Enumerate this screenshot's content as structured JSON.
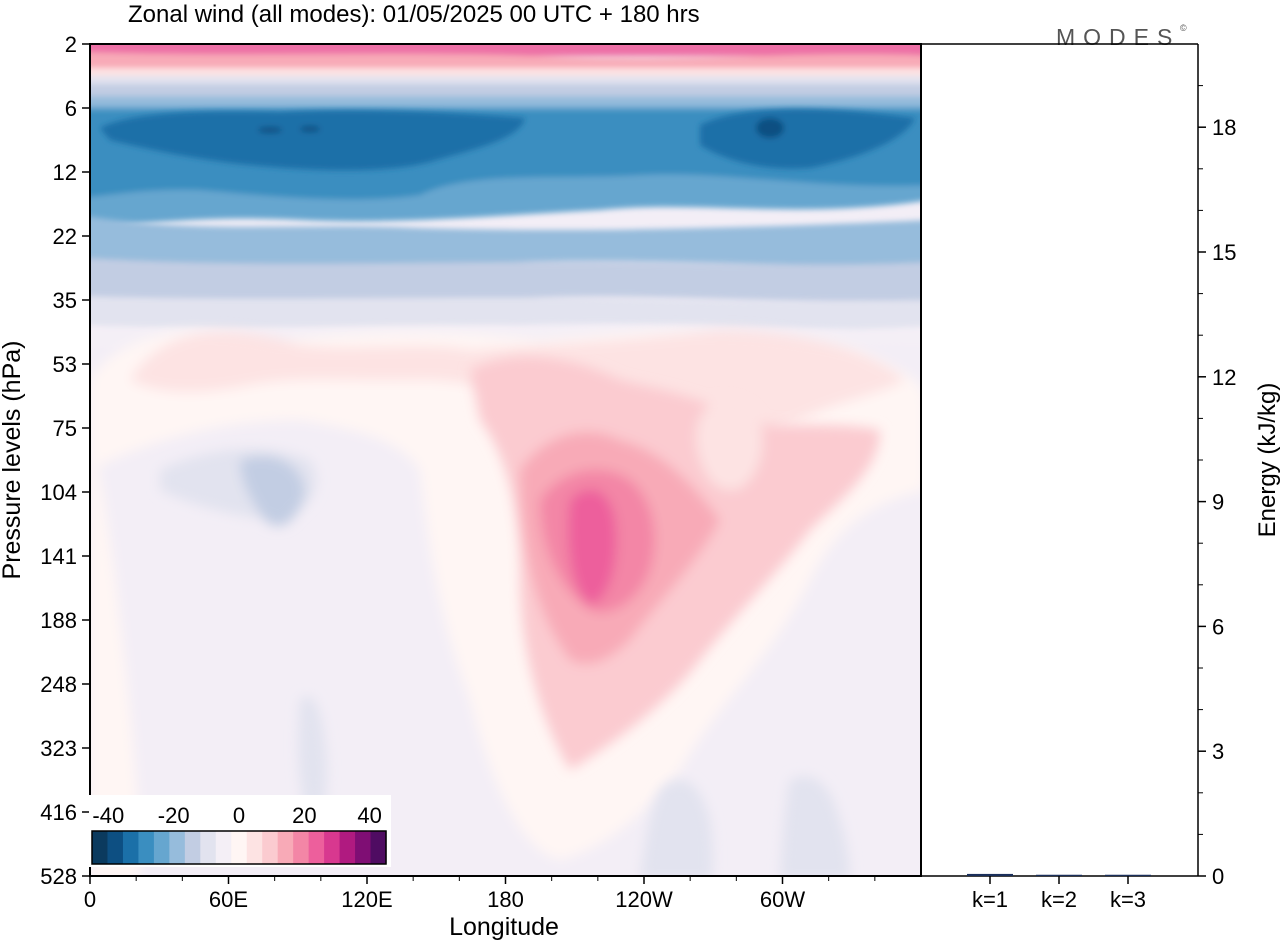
{
  "logo": "MODES",
  "chart_data": [
    {
      "type": "heatmap",
      "title": "Zonal wind (all modes):  01/05/2025  00 UTC  + 180 hrs",
      "xlabel": "Longitude",
      "ylabel": "Pressure levels (hPa)",
      "x_ticks": [
        "0",
        "60E",
        "120E",
        "180",
        "120W",
        "60W"
      ],
      "x_tick_values": [
        0,
        60,
        120,
        180,
        240,
        300
      ],
      "xlim": [
        0,
        360
      ],
      "y_ticks": [
        "2",
        "6",
        "12",
        "22",
        "35",
        "53",
        "75",
        "104",
        "141",
        "188",
        "248",
        "323",
        "416",
        "528"
      ],
      "y_scale": "model levels, pressure decreasing upward",
      "colorbar": {
        "tick_labels": [
          "-40",
          "-20",
          "0",
          "20",
          "40"
        ],
        "tick_values": [
          -40,
          -20,
          0,
          20,
          40
        ],
        "levels": [
          -45,
          -40,
          -35,
          -30,
          -25,
          -20,
          -15,
          -10,
          -5,
          0,
          5,
          10,
          15,
          20,
          25,
          30,
          35,
          40,
          45
        ],
        "colors": [
          "#0b3a5e",
          "#0d4f82",
          "#1b70a8",
          "#3a8ec0",
          "#66a6cf",
          "#96bcdc",
          "#c2cde3",
          "#e2e3ef",
          "#f4eff6",
          "#fff6f4",
          "#fde3e3",
          "#fbcbd0",
          "#f8aab7",
          "#f386a6",
          "#ed5f9c",
          "#d8388f",
          "#b01a80",
          "#7f0e74",
          "#4f0c62"
        ]
      },
      "features": [
        {
          "region": "easterly jet core",
          "lon_range": [
            0,
            360
          ],
          "pressure_range": [
            6,
            12
          ],
          "value": -40
        },
        {
          "region": "upper easterlies",
          "lon_range": [
            0,
            360
          ],
          "pressure_range": [
            12,
            35
          ],
          "value": -20
        },
        {
          "region": "westerly maximum",
          "lon": 200,
          "pressure": 141,
          "value": 25
        },
        {
          "region": "weak easterlies",
          "lon": 70,
          "pressure": 120,
          "value": -5
        }
      ]
    },
    {
      "type": "bar",
      "categories": [
        "k=1",
        "k=2",
        "k=3"
      ],
      "values": [
        0.05,
        0.03,
        0.03
      ],
      "ylabel": "Energy (kJ/kg)",
      "ylim": [
        0,
        20
      ],
      "y_ticks": [
        0,
        3,
        6,
        9,
        12,
        15,
        18
      ]
    }
  ]
}
